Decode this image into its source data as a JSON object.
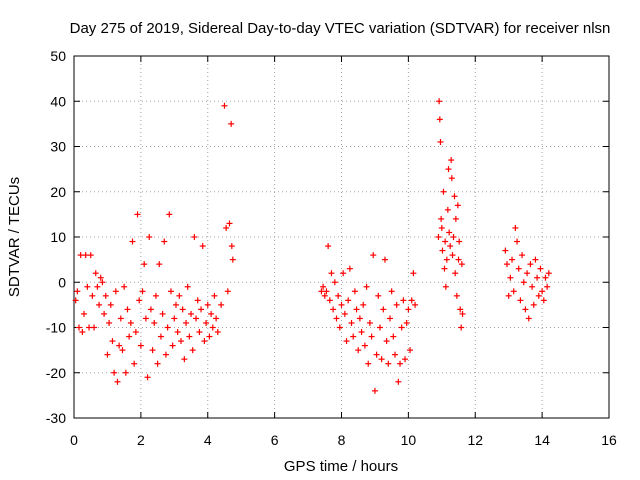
{
  "chart_data": {
    "type": "scatter",
    "title": "Day 275 of 2019, Sidereal Day-to-day VTEC variation (SDTVAR) for receiver nlsn",
    "xlabel": "GPS time / hours",
    "ylabel": "SDTVAR / TECUs",
    "xlim": [
      0,
      16
    ],
    "ylim": [
      -30,
      50
    ],
    "xticks": [
      "0",
      "2",
      "4",
      "6",
      "8",
      "10",
      "12",
      "14",
      "16"
    ],
    "yticks": [
      "-30",
      "-20",
      "-10",
      "0",
      "10",
      "20",
      "30",
      "40",
      "50"
    ],
    "grid": true,
    "marker": "+",
    "series": [
      {
        "name": "SDTVAR",
        "color": "#ff0000",
        "points": [
          [
            0.05,
            -4
          ],
          [
            0.1,
            -2
          ],
          [
            0.15,
            -10
          ],
          [
            0.2,
            6
          ],
          [
            0.25,
            -11
          ],
          [
            0.3,
            -7
          ],
          [
            0.35,
            6
          ],
          [
            0.4,
            -1
          ],
          [
            0.45,
            -10
          ],
          [
            0.5,
            6
          ],
          [
            0.55,
            -3
          ],
          [
            0.6,
            -10
          ],
          [
            0.65,
            2
          ],
          [
            0.7,
            -1
          ],
          [
            0.75,
            -5
          ],
          [
            0.8,
            1
          ],
          [
            0.85,
            0
          ],
          [
            0.9,
            -7
          ],
          [
            0.95,
            -3
          ],
          [
            1.0,
            -16
          ],
          [
            1.05,
            -9
          ],
          [
            1.1,
            -5
          ],
          [
            1.15,
            -13
          ],
          [
            1.2,
            -20
          ],
          [
            1.25,
            -2
          ],
          [
            1.3,
            -22
          ],
          [
            1.35,
            -14
          ],
          [
            1.4,
            -8
          ],
          [
            1.45,
            -15
          ],
          [
            1.5,
            -1
          ],
          [
            1.55,
            -20
          ],
          [
            1.6,
            -6
          ],
          [
            1.65,
            -12
          ],
          [
            1.7,
            -9
          ],
          [
            1.75,
            9
          ],
          [
            1.8,
            -18
          ],
          [
            1.85,
            -11
          ],
          [
            1.9,
            15
          ],
          [
            1.95,
            -4
          ],
          [
            2.0,
            -14
          ],
          [
            2.05,
            -2
          ],
          [
            2.1,
            4
          ],
          [
            2.15,
            -8
          ],
          [
            2.2,
            -21
          ],
          [
            2.25,
            10
          ],
          [
            2.3,
            -6
          ],
          [
            2.35,
            -15
          ],
          [
            2.4,
            -9
          ],
          [
            2.45,
            -3
          ],
          [
            2.5,
            -18
          ],
          [
            2.55,
            4
          ],
          [
            2.6,
            -12
          ],
          [
            2.65,
            -7
          ],
          [
            2.7,
            9
          ],
          [
            2.75,
            -16
          ],
          [
            2.8,
            -10
          ],
          [
            2.85,
            15
          ],
          [
            2.9,
            -2
          ],
          [
            2.95,
            -14
          ],
          [
            3.0,
            -8
          ],
          [
            3.05,
            -5
          ],
          [
            3.1,
            -11
          ],
          [
            3.15,
            -3
          ],
          [
            3.2,
            -13
          ],
          [
            3.25,
            -6
          ],
          [
            3.3,
            -17
          ],
          [
            3.35,
            -9
          ],
          [
            3.4,
            -1
          ],
          [
            3.45,
            -12
          ],
          [
            3.5,
            -7
          ],
          [
            3.55,
            -15
          ],
          [
            3.6,
            10
          ],
          [
            3.65,
            -8
          ],
          [
            3.7,
            -4
          ],
          [
            3.75,
            -11
          ],
          [
            3.8,
            -6
          ],
          [
            3.85,
            8
          ],
          [
            3.9,
            -13
          ],
          [
            3.95,
            -9
          ],
          [
            4.0,
            -5
          ],
          [
            4.05,
            -12
          ],
          [
            4.1,
            -7
          ],
          [
            4.15,
            -10
          ],
          [
            4.2,
            -3
          ],
          [
            4.25,
            -8
          ],
          [
            4.3,
            -11
          ],
          [
            4.4,
            -5
          ],
          [
            4.5,
            39
          ],
          [
            4.55,
            12
          ],
          [
            4.6,
            -2
          ],
          [
            4.65,
            13
          ],
          [
            4.7,
            35
          ],
          [
            4.72,
            8
          ],
          [
            4.75,
            5
          ],
          [
            7.4,
            -2
          ],
          [
            7.45,
            -1
          ],
          [
            7.5,
            -3
          ],
          [
            7.55,
            -2
          ],
          [
            7.6,
            8
          ],
          [
            7.65,
            -4
          ],
          [
            7.7,
            2
          ],
          [
            7.75,
            -6
          ],
          [
            7.8,
            0
          ],
          [
            7.85,
            -8
          ],
          [
            7.9,
            -3
          ],
          [
            7.95,
            -10
          ],
          [
            8.0,
            -5
          ],
          [
            8.05,
            2
          ],
          [
            8.1,
            -7
          ],
          [
            8.15,
            -13
          ],
          [
            8.2,
            -4
          ],
          [
            8.25,
            3
          ],
          [
            8.3,
            -9
          ],
          [
            8.35,
            -12
          ],
          [
            8.4,
            -2
          ],
          [
            8.45,
            -6
          ],
          [
            8.5,
            -15
          ],
          [
            8.55,
            -8
          ],
          [
            8.6,
            -11
          ],
          [
            8.65,
            -5
          ],
          [
            8.7,
            -14
          ],
          [
            8.75,
            -1
          ],
          [
            8.8,
            -18
          ],
          [
            8.85,
            -9
          ],
          [
            8.9,
            -12
          ],
          [
            8.95,
            6
          ],
          [
            9.0,
            -24
          ],
          [
            9.05,
            -16
          ],
          [
            9.1,
            -3
          ],
          [
            9.15,
            -10
          ],
          [
            9.2,
            -17
          ],
          [
            9.25,
            -6
          ],
          [
            9.3,
            5
          ],
          [
            9.35,
            -13
          ],
          [
            9.4,
            -18
          ],
          [
            9.45,
            -8
          ],
          [
            9.5,
            -2
          ],
          [
            9.55,
            -12
          ],
          [
            9.6,
            -16
          ],
          [
            9.65,
            -5
          ],
          [
            9.7,
            -22
          ],
          [
            9.75,
            -18
          ],
          [
            9.8,
            -10
          ],
          [
            9.85,
            -4
          ],
          [
            9.9,
            -17
          ],
          [
            9.95,
            -9
          ],
          [
            10.0,
            -6
          ],
          [
            10.05,
            -15
          ],
          [
            10.1,
            -4
          ],
          [
            10.15,
            2
          ],
          [
            10.2,
            -5
          ],
          [
            10.9,
            10
          ],
          [
            10.92,
            40
          ],
          [
            10.94,
            36
          ],
          [
            10.96,
            31
          ],
          [
            10.98,
            14
          ],
          [
            11.0,
            12
          ],
          [
            11.02,
            7
          ],
          [
            11.05,
            20
          ],
          [
            11.08,
            3
          ],
          [
            11.1,
            9
          ],
          [
            11.12,
            -1
          ],
          [
            11.15,
            5
          ],
          [
            11.18,
            16
          ],
          [
            11.2,
            25
          ],
          [
            11.22,
            11
          ],
          [
            11.25,
            8
          ],
          [
            11.28,
            27
          ],
          [
            11.3,
            23
          ],
          [
            11.32,
            6
          ],
          [
            11.35,
            10
          ],
          [
            11.38,
            19
          ],
          [
            11.4,
            2
          ],
          [
            11.42,
            14
          ],
          [
            11.45,
            -3
          ],
          [
            11.48,
            17
          ],
          [
            11.5,
            5
          ],
          [
            11.52,
            9
          ],
          [
            11.55,
            -6
          ],
          [
            11.58,
            -10
          ],
          [
            11.6,
            4
          ],
          [
            11.62,
            -7
          ],
          [
            12.9,
            7
          ],
          [
            12.95,
            4
          ],
          [
            13.0,
            -3
          ],
          [
            13.05,
            1
          ],
          [
            13.1,
            5
          ],
          [
            13.15,
            -2
          ],
          [
            13.2,
            12
          ],
          [
            13.25,
            9
          ],
          [
            13.3,
            3
          ],
          [
            13.35,
            -4
          ],
          [
            13.4,
            6
          ],
          [
            13.45,
            0
          ],
          [
            13.5,
            -6
          ],
          [
            13.55,
            2
          ],
          [
            13.6,
            -8
          ],
          [
            13.65,
            4
          ],
          [
            13.7,
            -1
          ],
          [
            13.75,
            -5
          ],
          [
            13.8,
            5
          ],
          [
            13.85,
            1
          ],
          [
            13.9,
            -3
          ],
          [
            13.95,
            3
          ],
          [
            14.0,
            -2
          ],
          [
            14.05,
            -4
          ],
          [
            14.1,
            1
          ],
          [
            14.15,
            -1
          ],
          [
            14.2,
            2
          ]
        ]
      }
    ]
  }
}
